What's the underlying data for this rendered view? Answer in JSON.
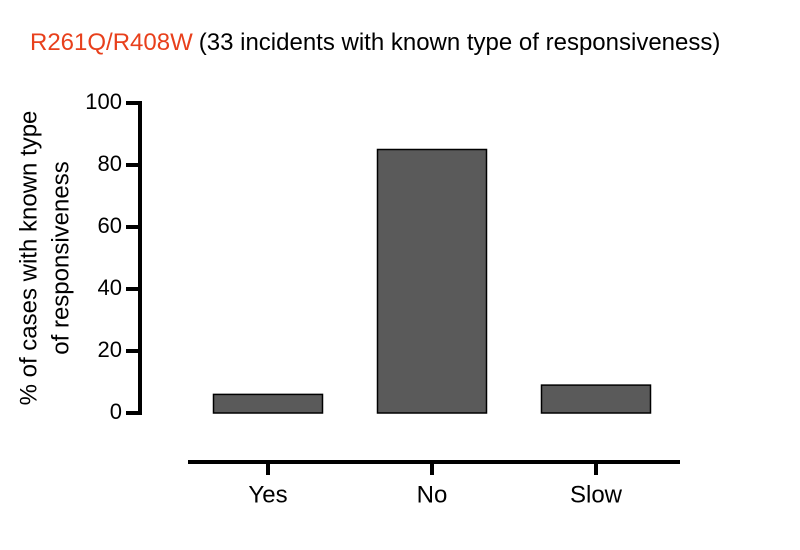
{
  "chart_data": {
    "type": "bar",
    "title": "R261Q/R408W",
    "title_color": "#e8401c",
    "subtitle": "(33 incidents with known type of responsiveness)",
    "ylabel": [
      "% of cases with  known type",
      "of responsiveness"
    ],
    "categories": [
      "Yes",
      "No",
      "Slow"
    ],
    "values": [
      6,
      85,
      9
    ],
    "color": "#5a5a5a",
    "ylim": [
      0,
      100
    ],
    "yticks": [
      0,
      20,
      40,
      60,
      80,
      100
    ],
    "grid": false
  }
}
